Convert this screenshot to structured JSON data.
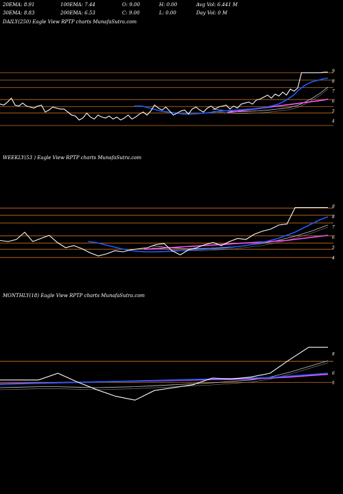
{
  "header": {
    "row1": [
      "20EMA: 8.91",
      "100EMA: 7.44",
      "O: 9.00",
      "H: 0.00",
      "Avg Vol: 6.441 M"
    ],
    "row2": [
      "30EMA: 8.83",
      "200EMA: 6.53",
      "C: 9.00",
      "L: 0.00",
      "Day Vol: 0  M"
    ]
  },
  "colors": {
    "background": "#000000",
    "price": "#ffffff",
    "ema_fast": "#1f5cff",
    "ema_long": "#ff55ff",
    "ema_mid": "#c8c8c8",
    "level": "#b5651d"
  },
  "chart_data": [
    {
      "type": "line",
      "title": "DAILY(250) Eagle   View  RPTP charts MunafaSutra.com",
      "ylim": [
        3.2,
        9.6
      ],
      "yticks": [
        4,
        5,
        6,
        7,
        8,
        9
      ],
      "levels": [
        3.55,
        4.8,
        5.45,
        6.15,
        7.35,
        8.1,
        8.85
      ],
      "series": [
        {
          "role": "price",
          "values": [
            5.7,
            5.6,
            5.9,
            6.3,
            5.6,
            5.5,
            5.8,
            5.5,
            5.4,
            5.3,
            5.5,
            5.6,
            4.9,
            5.1,
            5.4,
            5.3,
            5.2,
            5.2,
            4.9,
            4.6,
            4.5,
            4.1,
            4.3,
            4.8,
            4.4,
            4.2,
            4.6,
            4.4,
            4.3,
            4.5,
            4.2,
            4.4,
            4.1,
            4.3,
            4.6,
            4.2,
            4.4,
            4.7,
            4.9,
            4.6,
            5.0,
            5.6,
            5.3,
            5.1,
            5.4,
            5.0,
            4.6,
            4.8,
            5.0,
            5.1,
            4.7,
            5.2,
            5.4,
            5.1,
            4.9,
            5.3,
            5.5,
            5.2,
            5.4,
            5.5,
            5.6,
            5.2,
            5.5,
            5.3,
            5.7,
            5.8,
            5.9,
            5.7,
            6.1,
            6.2,
            6.4,
            6.6,
            6.3,
            6.7,
            6.5,
            6.9,
            6.6,
            7.2,
            7.0,
            7.3,
            8.85,
            8.85,
            8.85,
            8.85,
            8.85,
            8.85,
            8.9,
            8.9
          ]
        },
        {
          "role": "ema_fast",
          "values": [
            5.5,
            5.5,
            5.5,
            5.4,
            5.3,
            5.2,
            5.1,
            5.0,
            4.95,
            4.9,
            4.85,
            4.8,
            4.75,
            4.7,
            4.7,
            4.7,
            4.72,
            4.75,
            4.78,
            4.82,
            4.86,
            4.9,
            4.95,
            5.0,
            5.02,
            5.05,
            5.08,
            5.1,
            5.13,
            5.15,
            5.18,
            5.2,
            5.25,
            5.3,
            5.35,
            5.4,
            5.5,
            5.6,
            5.7,
            5.9,
            6.1,
            6.35,
            6.6,
            7.0,
            7.3,
            7.6,
            7.8,
            7.95,
            8.05,
            8.15,
            8.25,
            8.3
          ]
        },
        {
          "role": "ema_long",
          "values": [
            4.85,
            4.9,
            4.95,
            5.0,
            5.05,
            5.1,
            5.15,
            5.2,
            5.25,
            5.3,
            5.35,
            5.4,
            5.45,
            5.5,
            5.55,
            5.6,
            5.65,
            5.7,
            5.75,
            5.8,
            5.85,
            5.9,
            5.95,
            6.0,
            6.05,
            6.1,
            6.2
          ]
        },
        {
          "role": "ema_mid",
          "values": [
            5.2,
            5.15,
            5.1,
            5.05,
            5.0,
            4.98,
            4.96,
            4.95,
            4.95,
            4.96,
            4.98,
            5.0,
            5.02,
            5.05,
            5.08,
            5.12,
            5.16,
            5.2,
            5.25,
            5.3,
            5.35,
            5.45,
            5.55,
            5.7,
            5.9,
            6.1,
            6.3,
            6.55,
            6.8,
            7.1,
            7.4
          ]
        }
      ]
    },
    {
      "type": "line",
      "title": "WEEKLY(53                     ) Eagle   View  RPTP charts MunafaSutra.com",
      "ylim": [
        3.2,
        9.6
      ],
      "yticks": [
        4,
        5,
        6,
        7,
        8,
        9
      ],
      "levels": [
        4.05,
        4.85,
        5.45,
        6.15,
        7.4,
        8.15,
        8.85
      ],
      "series": [
        {
          "role": "price",
          "values": [
            5.7,
            5.6,
            5.8,
            6.5,
            5.6,
            5.9,
            6.2,
            5.5,
            5.0,
            5.2,
            4.9,
            4.5,
            4.2,
            4.4,
            4.7,
            4.6,
            4.8,
            4.9,
            5.0,
            5.3,
            5.4,
            4.7,
            4.3,
            4.8,
            5.0,
            5.3,
            5.5,
            5.2,
            5.6,
            5.9,
            5.8,
            6.3,
            6.6,
            6.8,
            7.2,
            7.3,
            8.9,
            8.9,
            8.9,
            8.9,
            8.9
          ]
        },
        {
          "role": "ema_fast",
          "values": [
            5.6,
            5.5,
            5.3,
            5.1,
            4.9,
            4.75,
            4.65,
            4.6,
            4.6,
            4.62,
            4.65,
            4.7,
            4.75,
            4.8,
            4.85,
            4.9,
            4.95,
            5.0,
            5.1,
            5.2,
            5.35,
            5.5,
            5.7,
            5.9,
            6.2,
            6.5,
            6.9,
            7.3,
            7.7,
            8.0
          ]
        },
        {
          "role": "ema_long",
          "values": [
            4.85,
            4.9,
            4.95,
            5.0,
            5.05,
            5.1,
            5.15,
            5.2,
            5.25,
            5.3,
            5.35,
            5.4,
            5.45,
            5.5,
            5.55,
            5.6,
            5.65,
            5.7,
            5.8,
            5.9,
            6.0,
            6.1,
            6.2
          ]
        },
        {
          "role": "ema_mid",
          "values": [
            5.2,
            5.1,
            5.0,
            4.95,
            4.9,
            4.9,
            4.92,
            4.95,
            5.0,
            5.05,
            5.1,
            5.2,
            5.3,
            5.4,
            5.55,
            5.7,
            5.9,
            6.1,
            6.35,
            6.6,
            6.9,
            7.2
          ]
        }
      ]
    },
    {
      "type": "line",
      "title": "MONTHLY(18) Eagle   View  RPTP charts MunafaSutra.com",
      "ylim": [
        2.0,
        9.5
      ],
      "yticks": [
        5,
        6,
        8
      ],
      "levels": [
        5.05,
        7.25
      ],
      "series": [
        {
          "role": "price",
          "values": [
            5.3,
            5.3,
            5.3,
            6.0,
            5.1,
            4.3,
            3.6,
            3.2,
            4.2,
            4.5,
            4.8,
            5.5,
            5.4,
            5.6,
            6.0,
            7.4,
            8.7,
            8.7
          ]
        },
        {
          "role": "ema_fast",
          "values": [
            4.85,
            4.9,
            4.95,
            5.0,
            5.05,
            5.1,
            5.15,
            5.2,
            5.25,
            5.3,
            5.35,
            5.4,
            5.45,
            5.5,
            5.55,
            5.7,
            5.85,
            6.0
          ]
        },
        {
          "role": "ema_long",
          "values": [
            4.9,
            4.94,
            4.98,
            5.02,
            5.06,
            5.1,
            5.14,
            5.18,
            5.22,
            5.26,
            5.3,
            5.34,
            5.38,
            5.42,
            5.5,
            5.6,
            5.75,
            5.9
          ]
        },
        {
          "role": "ema_mid",
          "values": [
            4.5,
            4.55,
            4.6,
            4.6,
            4.55,
            4.5,
            4.55,
            4.6,
            4.7,
            4.8,
            4.9,
            5.0,
            5.15,
            5.3,
            5.6,
            6.1,
            6.7,
            7.3
          ]
        }
      ]
    }
  ]
}
